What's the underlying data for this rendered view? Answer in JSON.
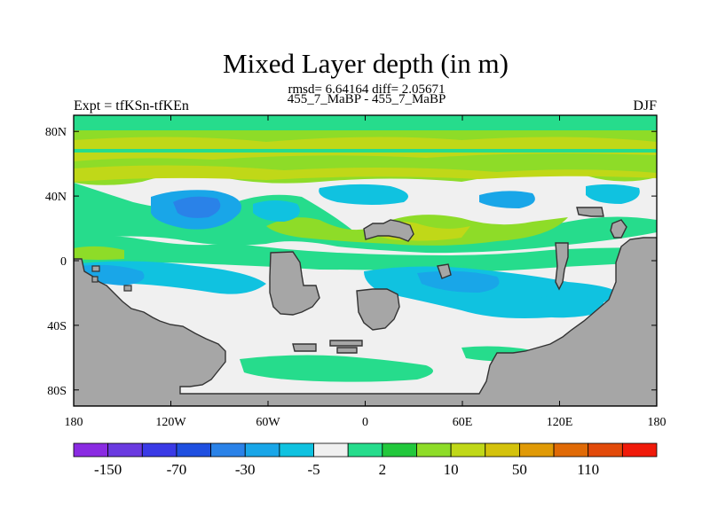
{
  "chart_data": {
    "type": "heatmap",
    "title": "Mixed Layer depth (in m)",
    "subtitle": "rmsd= 6.64164 diff= 2.05671",
    "subtitle2": "455_7_MaBP - 455_7_MaBP",
    "left_label": "Expt = tfKSn-tfKEn",
    "right_label": "DJF",
    "x_ticks": [
      "180",
      "120W",
      "60W",
      "0",
      "60E",
      "120E",
      "180"
    ],
    "y_ticks": [
      "80N",
      "40N",
      "0",
      "40S",
      "80S"
    ],
    "xlim": [
      -180,
      180
    ],
    "ylim": [
      -90,
      90
    ],
    "colorbar": {
      "labels": [
        "-150",
        "-70",
        "-30",
        "-5",
        "2",
        "10",
        "50",
        "110"
      ],
      "colors": [
        "#8a2be2",
        "#6a3ae0",
        "#3a3ae6",
        "#1f4fe0",
        "#2a82e8",
        "#19a6e8",
        "#10c2e0",
        "#f0f0f0",
        "#26dc8c",
        "#22c83c",
        "#8edc28",
        "#c0d818",
        "#d4c20c",
        "#e09a06",
        "#e06a06",
        "#e24a0a",
        "#f01a0a"
      ]
    },
    "land_color": "#a6a6a6",
    "grid": false
  }
}
